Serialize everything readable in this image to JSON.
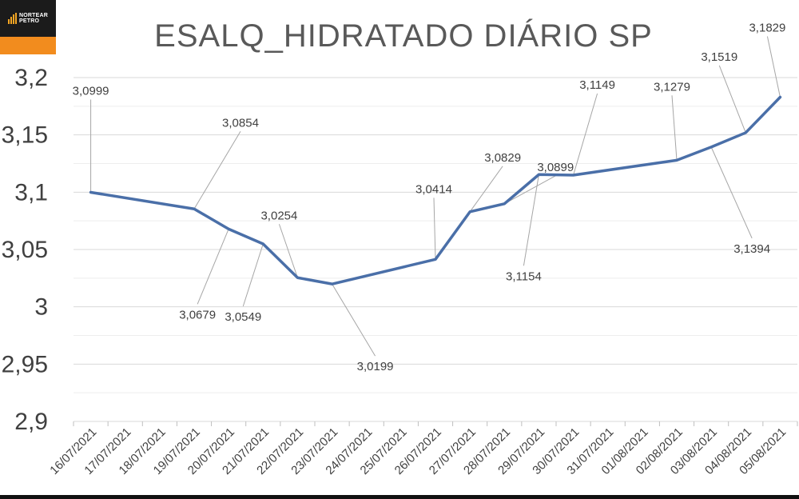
{
  "logo": {
    "line1": "NORTEAR",
    "line2": "PETRO"
  },
  "colors": {
    "series": "#4a6fa8",
    "grid": "#e6e6e6",
    "leader": "#a6a6a6",
    "logo_bg": "#f28c1e"
  },
  "chart_data": {
    "type": "line",
    "title": "ESALQ_HIDRATADO DIÁRIO SP",
    "xlabel": "",
    "ylabel": "",
    "ylim": [
      2.9,
      3.2
    ],
    "yticks": [
      2.9,
      2.95,
      3.0,
      3.05,
      3.1,
      3.15,
      3.2
    ],
    "ytick_labels": [
      "2,9",
      "2,95",
      "3",
      "3,05",
      "3,1",
      "3,15",
      "3,2"
    ],
    "grid": true,
    "legend": "none",
    "categories": [
      "16/07/2021",
      "17/07/2021",
      "18/07/2021",
      "19/07/2021",
      "20/07/2021",
      "21/07/2021",
      "22/07/2021",
      "23/07/2021",
      "24/07/2021",
      "25/07/2021",
      "26/07/2021",
      "27/07/2021",
      "28/07/2021",
      "29/07/2021",
      "30/07/2021",
      "31/07/2021",
      "01/08/2021",
      "02/08/2021",
      "03/08/2021",
      "04/08/2021",
      "05/08/2021"
    ],
    "points": [
      {
        "x": "16/07/2021",
        "y": 3.0999,
        "label": "3,0999"
      },
      {
        "x": "19/07/2021",
        "y": 3.0854,
        "label": "3,0854"
      },
      {
        "x": "20/07/2021",
        "y": 3.0679,
        "label": "3,0679"
      },
      {
        "x": "21/07/2021",
        "y": 3.0549,
        "label": "3,0549"
      },
      {
        "x": "22/07/2021",
        "y": 3.0254,
        "label": "3,0254"
      },
      {
        "x": "23/07/2021",
        "y": 3.0199,
        "label": "3,0199"
      },
      {
        "x": "26/07/2021",
        "y": 3.0414,
        "label": "3,0414"
      },
      {
        "x": "27/07/2021",
        "y": 3.0829,
        "label": "3,0829"
      },
      {
        "x": "28/07/2021",
        "y": 3.0899,
        "label": "3,0899"
      },
      {
        "x": "29/07/2021",
        "y": 3.1154,
        "label": "3,1154"
      },
      {
        "x": "30/07/2021",
        "y": 3.1149,
        "label": "3,1149"
      },
      {
        "x": "02/08/2021",
        "y": 3.1279,
        "label": "3,1279"
      },
      {
        "x": "03/08/2021",
        "y": 3.1394,
        "label": "3,1394"
      },
      {
        "x": "04/08/2021",
        "y": 3.1519,
        "label": "3,1519"
      },
      {
        "x": "05/08/2021",
        "y": 3.1829,
        "label": "3,1829"
      }
    ]
  }
}
